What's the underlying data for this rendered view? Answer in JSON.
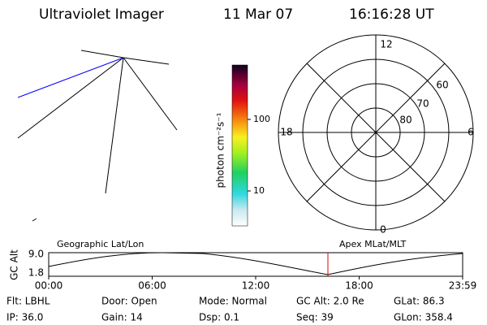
{
  "header": {
    "title": "Ultraviolet Imager",
    "date": "11 Mar 07",
    "time": "16:16:28 UT"
  },
  "colorbar": {
    "label": "photon cm⁻²s⁻¹",
    "ticks": [
      "100",
      "10"
    ]
  },
  "polar": {
    "mlt_labels": {
      "top": "12",
      "bottom": "0",
      "left": "18",
      "right": "6"
    },
    "lat_labels": [
      "60",
      "70",
      "80"
    ]
  },
  "orbit": {
    "left_title": "Geographic Lat/Lon",
    "right_title": "Apex MLat/MLT",
    "y_label": "GC Alt",
    "y_ticks": [
      "9.0",
      "1.8"
    ],
    "x_ticks": [
      "00:00",
      "06:00",
      "12:00",
      "18:00",
      "23:59"
    ]
  },
  "info": {
    "rows": [
      [
        "Flt: LBHL",
        "Door: Open",
        "Mode: Normal",
        "GC Alt: 2.0 Re",
        "GLat: 86.3"
      ],
      [
        "IP: 36.0",
        "Gain: 14",
        "Dsp: 0.1",
        "Seq: 39",
        "GLon: 358.4"
      ]
    ]
  }
}
